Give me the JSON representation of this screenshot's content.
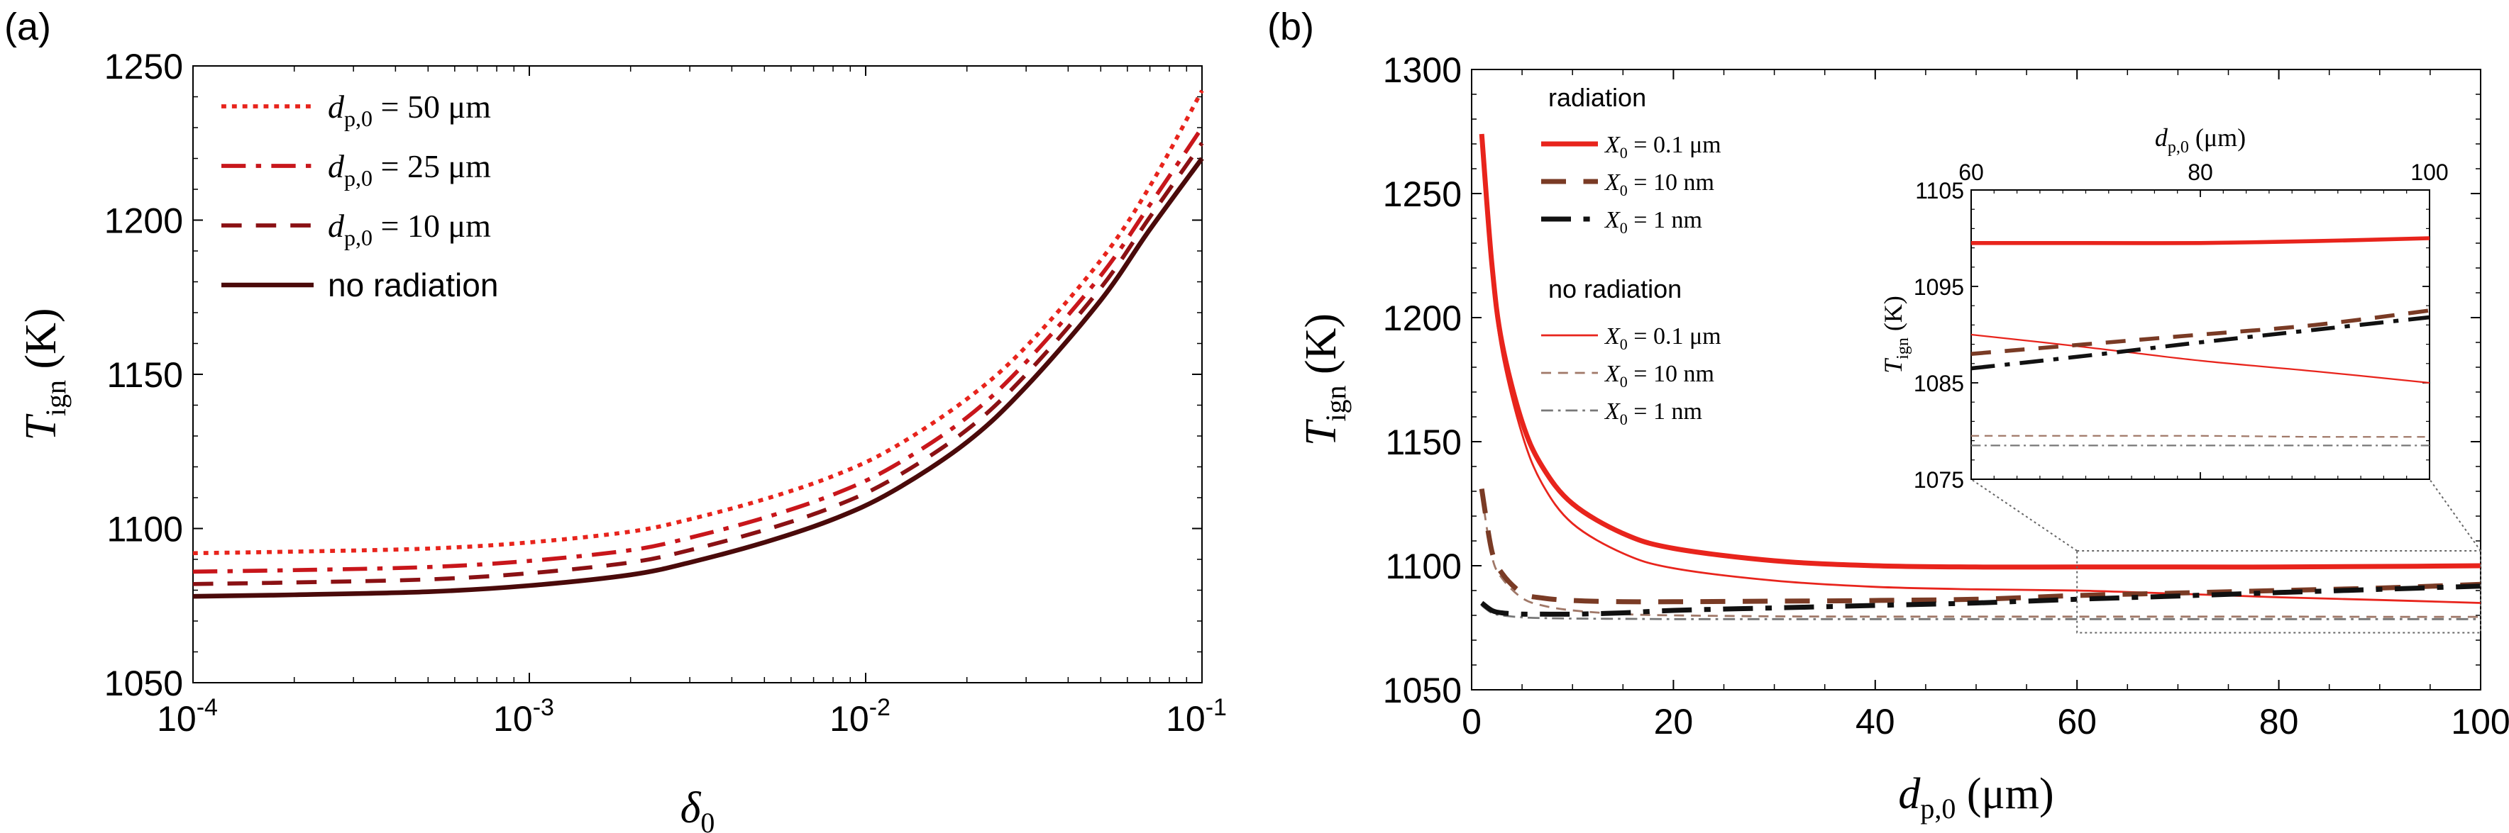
{
  "chart_data": [
    {
      "panel_label": "(a)",
      "type": "line",
      "x_scale": "log",
      "xlabel": "δ0",
      "ylabel": "Tign (K)",
      "xlim": [
        0.0001,
        0.1
      ],
      "ylim": [
        1050,
        1250
      ],
      "x_ticks": [
        {
          "value": 0.0001,
          "base": "10",
          "exp": "-4"
        },
        {
          "value": 0.001,
          "base": "10",
          "exp": "-3"
        },
        {
          "value": 0.01,
          "base": "10",
          "exp": "-2"
        },
        {
          "value": 0.1,
          "base": "10",
          "exp": "-1"
        }
      ],
      "y_ticks": [
        1050,
        1100,
        1150,
        1200,
        1250
      ],
      "grid": false,
      "legend": "top-left",
      "x": [
        0.0001,
        0.0002,
        0.0005,
        0.001,
        0.002,
        0.003,
        0.005,
        0.008,
        0.012,
        0.02,
        0.03,
        0.05,
        0.07,
        0.1
      ],
      "series": [
        {
          "name": "dp,0 = 50 μm",
          "legend_text": "d_{p,0} = 50 μm",
          "color": "#e8241c",
          "dash": "dotted",
          "width": 2.6,
          "values": [
            1092,
            1092.5,
            1093.5,
            1095.5,
            1099,
            1103,
            1109.5,
            1117,
            1126,
            1142,
            1159,
            1187,
            1211,
            1242
          ]
        },
        {
          "name": "dp,0 = 25 μm",
          "legend_text": "d_{p,0} = 25 μm",
          "color": "#c8161b",
          "dash": "dashdot",
          "width": 2.6,
          "values": [
            1086,
            1086.5,
            1087.5,
            1089.5,
            1093,
            1097,
            1103.5,
            1111,
            1120,
            1136,
            1154,
            1182,
            1205,
            1230
          ]
        },
        {
          "name": "dp,0 = 10 μm",
          "legend_text": "d_{p,0} = 10 μm",
          "color": "#8a1114",
          "dash": "dashed",
          "width": 2.6,
          "values": [
            1082,
            1082.5,
            1083.5,
            1085.5,
            1089,
            1093,
            1099.5,
            1107,
            1116,
            1132,
            1150,
            1178,
            1201,
            1225
          ]
        },
        {
          "name": "no radiation",
          "legend_text": "no radiation",
          "color": "#4a0a0a",
          "dash": "solid",
          "width": 3,
          "values": [
            1078,
            1078.5,
            1079.5,
            1081.5,
            1085,
            1089,
            1095.5,
            1103,
            1112,
            1128,
            1146,
            1174,
            1197,
            1220
          ]
        }
      ]
    },
    {
      "panel_label": "(b)",
      "type": "line",
      "x_scale": "linear",
      "xlabel": "dp,0 (μm)",
      "ylabel": "Tign (K)",
      "xlim": [
        0,
        100
      ],
      "ylim": [
        1050,
        1300
      ],
      "x_ticks": [
        0,
        20,
        40,
        60,
        80,
        100
      ],
      "y_ticks": [
        1050,
        1100,
        1150,
        1200,
        1250,
        1300
      ],
      "grid": false,
      "legend": "top-left",
      "legend_groups": [
        "radiation",
        "no radiation"
      ],
      "series": [
        {
          "name": "X0 = 0.1 μm",
          "group": "radiation",
          "color": "#e8241c",
          "dash": "solid",
          "width": 3.5,
          "x": [
            1,
            2,
            3,
            5,
            7,
            10,
            15,
            20,
            30,
            40,
            50,
            60,
            70,
            80,
            90,
            100
          ],
          "values": [
            1274,
            1222,
            1190,
            1158,
            1140,
            1125,
            1113,
            1107,
            1102,
            1100,
            1099.5,
            1099.5,
            1099.5,
            1099.5,
            1099.7,
            1100
          ]
        },
        {
          "name": "X0 = 10 nm",
          "group": "radiation",
          "color": "#7a3b25",
          "dash": "dashed",
          "width": 3.5,
          "x": [
            1,
            2,
            3,
            5,
            7,
            10,
            15,
            20,
            30,
            40,
            50,
            60,
            70,
            80,
            90,
            100
          ],
          "values": [
            1131,
            1106,
            1097,
            1089,
            1087,
            1086,
            1085.5,
            1085.5,
            1085.7,
            1086,
            1086.5,
            1088,
            1089,
            1090,
            1091,
            1092.5
          ]
        },
        {
          "name": "X0 = 1 nm",
          "group": "radiation",
          "color": "#111111",
          "dash": "dashdot",
          "width": 3.5,
          "x": [
            1,
            2,
            3,
            5,
            7,
            10,
            15,
            20,
            30,
            40,
            50,
            60,
            70,
            80,
            90,
            100
          ],
          "values": [
            1085,
            1082,
            1081,
            1080.5,
            1080.5,
            1080.5,
            1081,
            1082,
            1083,
            1084,
            1085,
            1086.5,
            1087.8,
            1089.2,
            1090.5,
            1091.8
          ]
        },
        {
          "name": "X0 = 0.1 μm",
          "group": "no radiation",
          "color": "#e8241c",
          "dash": "solid",
          "width": 1.4,
          "x": [
            1,
            2,
            3,
            5,
            7,
            10,
            15,
            20,
            30,
            40,
            50,
            60,
            70,
            80,
            90,
            100
          ],
          "values": [
            1272,
            1219,
            1186,
            1153,
            1133,
            1117,
            1105,
            1099,
            1094,
            1091.5,
            1090.5,
            1090,
            1088.7,
            1087.3,
            1086.2,
            1085
          ]
        },
        {
          "name": "X0 = 10 nm",
          "group": "no radiation",
          "color": "#a07868",
          "dash": "dashed",
          "width": 1.4,
          "x": [
            1,
            2,
            3,
            5,
            7,
            10,
            15,
            20,
            30,
            40,
            50,
            60,
            70,
            80,
            90,
            100
          ],
          "values": [
            1129,
            1104,
            1095,
            1087,
            1084,
            1082,
            1080.5,
            1080,
            1079.6,
            1079.5,
            1079.5,
            1079.5,
            1079.5,
            1079.5,
            1079.4,
            1079.4
          ]
        },
        {
          "name": "X0 = 1 nm",
          "group": "no radiation",
          "color": "#777777",
          "dash": "dashdot",
          "width": 1.4,
          "x": [
            1,
            2,
            3,
            5,
            7,
            10,
            15,
            20,
            30,
            40,
            50,
            60,
            70,
            80,
            90,
            100
          ],
          "values": [
            1084,
            1081,
            1080,
            1079.2,
            1078.9,
            1078.7,
            1078.6,
            1078.5,
            1078.5,
            1078.5,
            1078.5,
            1078.5,
            1078.5,
            1078.5,
            1078.5,
            1078.5
          ]
        }
      ],
      "inset": {
        "xlabel": "dp,0 (μm)",
        "ylabel": "Tign (K)",
        "xlim": [
          60,
          100
        ],
        "ylim": [
          1075,
          1105
        ],
        "x_ticks": [
          60,
          80,
          100
        ],
        "y_ticks": [
          1075,
          1085,
          1095,
          1105
        ],
        "zoom_region": {
          "x": [
            60,
            100
          ],
          "y": [
            1073,
            1106
          ]
        }
      }
    }
  ]
}
